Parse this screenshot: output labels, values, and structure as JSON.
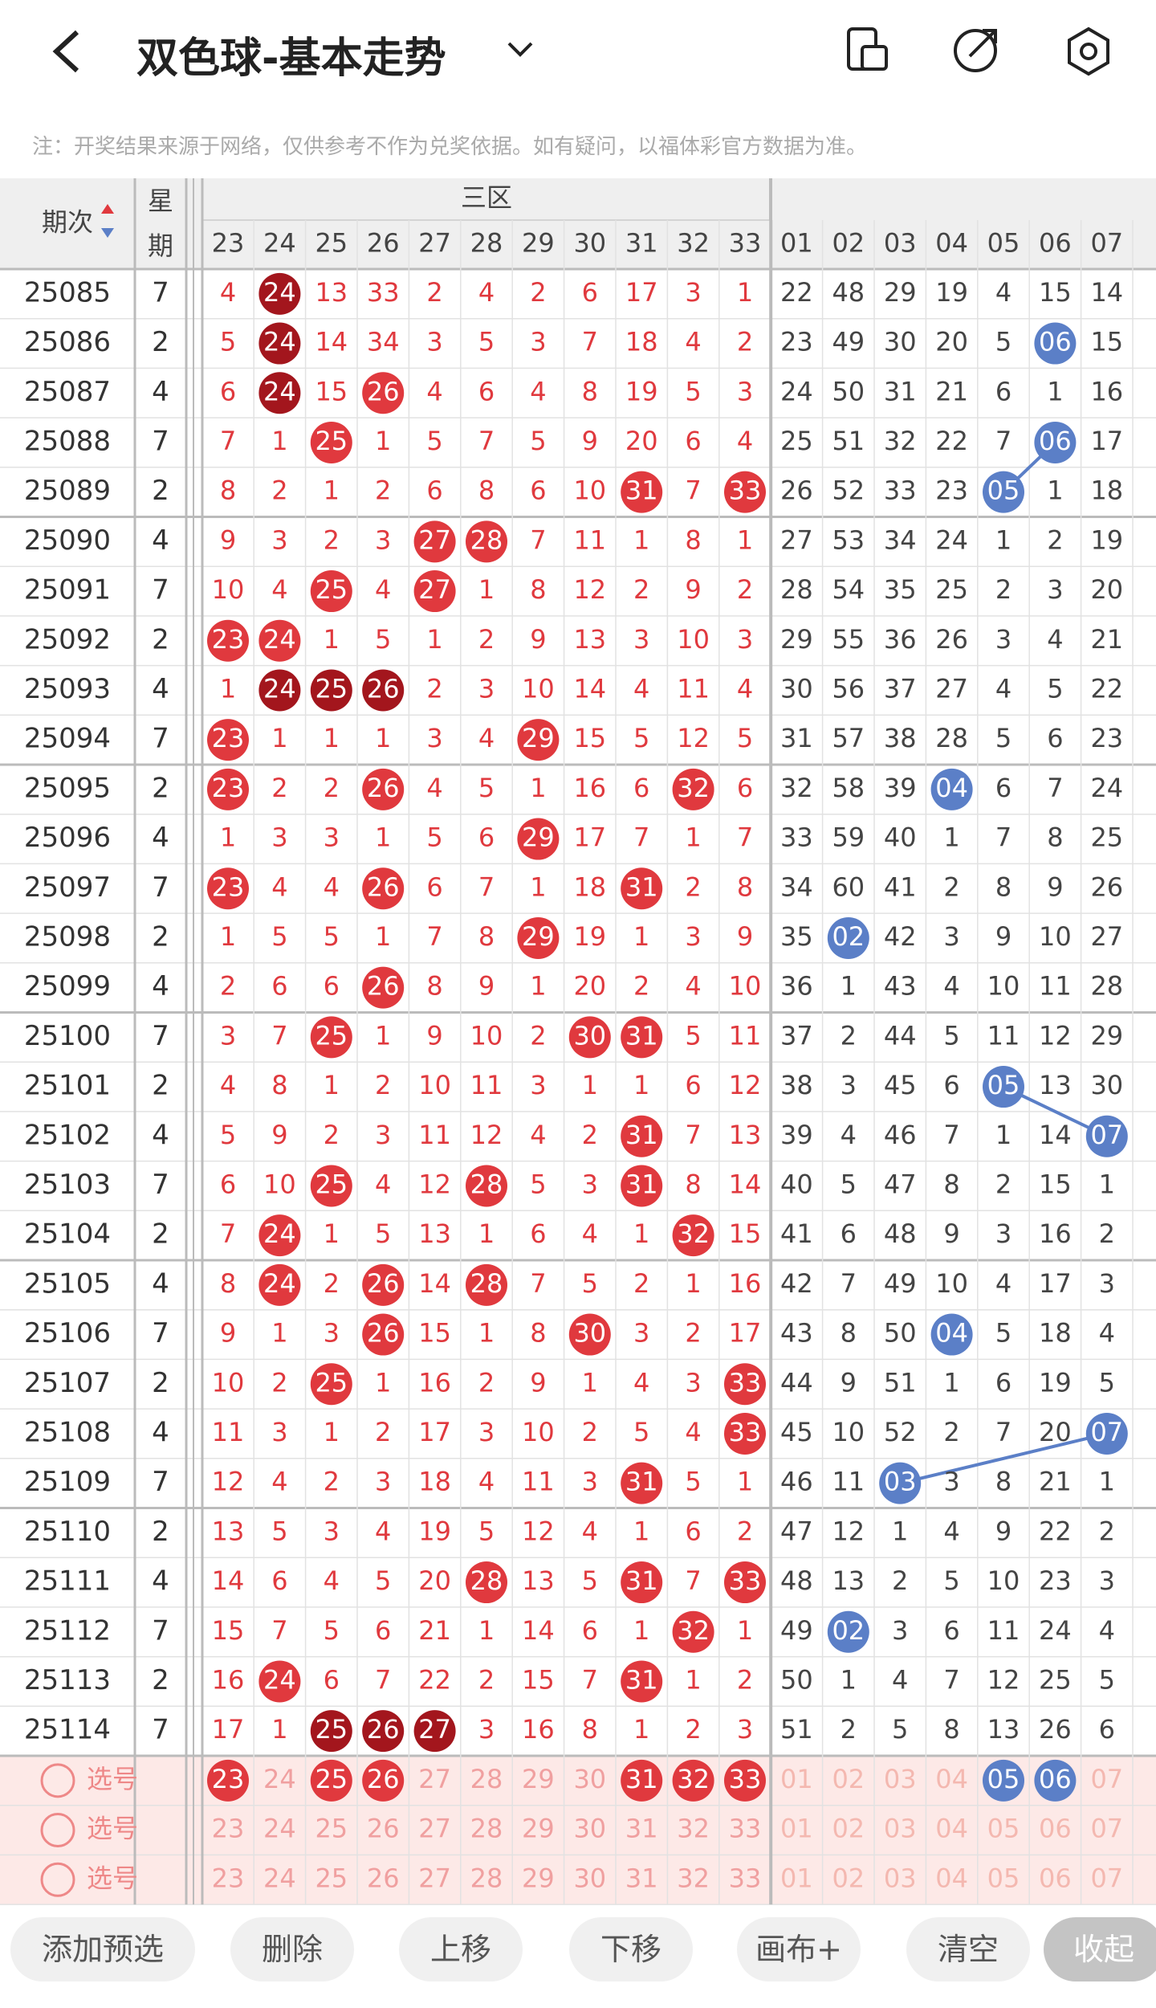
{
  "header": {
    "title": "双色球-基本走势",
    "note": "注：开奖结果来源于网络，仅供参考不作为兑奖依据。如有疑问，以福体彩官方数据为准。"
  },
  "table": {
    "col_period": "期次",
    "col_week_top": "星",
    "col_week_bottom": "期",
    "zone": "三区",
    "columns": [
      "23",
      "24",
      "25",
      "26",
      "27",
      "28",
      "29",
      "30",
      "31",
      "32",
      "33",
      "01",
      "02",
      "03",
      "04",
      "05",
      "06",
      "07"
    ],
    "rows": [
      {
        "period": "25085",
        "week": "7",
        "cells": [
          "4",
          "24",
          "13",
          "33",
          "2",
          "4",
          "2",
          "6",
          "17",
          "3",
          "1",
          "22",
          "48",
          "29",
          "19",
          "4",
          "15",
          "14"
        ]
      },
      {
        "period": "25086",
        "week": "2",
        "cells": [
          "5",
          "24",
          "14",
          "34",
          "3",
          "5",
          "3",
          "7",
          "18",
          "4",
          "2",
          "23",
          "49",
          "30",
          "20",
          "5",
          "06",
          "15"
        ]
      },
      {
        "period": "25087",
        "week": "4",
        "cells": [
          "6",
          "24",
          "15",
          "26",
          "4",
          "6",
          "4",
          "8",
          "19",
          "5",
          "3",
          "24",
          "50",
          "31",
          "21",
          "6",
          "1",
          "16"
        ]
      },
      {
        "period": "25088",
        "week": "7",
        "cells": [
          "7",
          "1",
          "25",
          "1",
          "5",
          "7",
          "5",
          "9",
          "20",
          "6",
          "4",
          "25",
          "51",
          "32",
          "22",
          "7",
          "06",
          "17"
        ]
      },
      {
        "period": "25089",
        "week": "2",
        "cells": [
          "8",
          "2",
          "1",
          "2",
          "6",
          "8",
          "6",
          "10",
          "31",
          "7",
          "33",
          "26",
          "52",
          "33",
          "23",
          "05",
          "1",
          "18"
        ]
      },
      {
        "period": "25090",
        "week": "4",
        "cells": [
          "9",
          "3",
          "2",
          "3",
          "27",
          "28",
          "7",
          "11",
          "1",
          "8",
          "1",
          "27",
          "53",
          "34",
          "24",
          "1",
          "2",
          "19"
        ]
      },
      {
        "period": "25091",
        "week": "7",
        "cells": [
          "10",
          "4",
          "25",
          "4",
          "27",
          "1",
          "8",
          "12",
          "2",
          "9",
          "2",
          "28",
          "54",
          "35",
          "25",
          "2",
          "3",
          "20"
        ]
      },
      {
        "period": "25092",
        "week": "2",
        "cells": [
          "23",
          "24",
          "1",
          "5",
          "1",
          "2",
          "9",
          "13",
          "3",
          "10",
          "3",
          "29",
          "55",
          "36",
          "26",
          "3",
          "4",
          "21"
        ]
      },
      {
        "period": "25093",
        "week": "4",
        "cells": [
          "1",
          "24",
          "25",
          "26",
          "2",
          "3",
          "10",
          "14",
          "4",
          "11",
          "4",
          "30",
          "56",
          "37",
          "27",
          "4",
          "5",
          "22"
        ]
      },
      {
        "period": "25094",
        "week": "7",
        "cells": [
          "23",
          "1",
          "1",
          "1",
          "3",
          "4",
          "29",
          "15",
          "5",
          "12",
          "5",
          "31",
          "57",
          "38",
          "28",
          "5",
          "6",
          "23"
        ]
      },
      {
        "period": "25095",
        "week": "2",
        "cells": [
          "23",
          "2",
          "2",
          "26",
          "4",
          "5",
          "1",
          "16",
          "6",
          "32",
          "6",
          "32",
          "58",
          "39",
          "04",
          "6",
          "7",
          "24"
        ]
      },
      {
        "period": "25096",
        "week": "4",
        "cells": [
          "1",
          "3",
          "3",
          "1",
          "5",
          "6",
          "29",
          "17",
          "7",
          "1",
          "7",
          "33",
          "59",
          "40",
          "1",
          "7",
          "8",
          "25"
        ]
      },
      {
        "period": "25097",
        "week": "7",
        "cells": [
          "23",
          "4",
          "4",
          "26",
          "6",
          "7",
          "1",
          "18",
          "31",
          "2",
          "8",
          "34",
          "60",
          "41",
          "2",
          "8",
          "9",
          "26"
        ]
      },
      {
        "period": "25098",
        "week": "2",
        "cells": [
          "1",
          "5",
          "5",
          "1",
          "7",
          "8",
          "29",
          "19",
          "1",
          "3",
          "9",
          "35",
          "02",
          "42",
          "3",
          "9",
          "10",
          "27"
        ]
      },
      {
        "period": "25099",
        "week": "4",
        "cells": [
          "2",
          "6",
          "6",
          "26",
          "8",
          "9",
          "1",
          "20",
          "2",
          "4",
          "10",
          "36",
          "1",
          "43",
          "4",
          "10",
          "11",
          "28"
        ]
      },
      {
        "period": "25100",
        "week": "7",
        "cells": [
          "3",
          "7",
          "25",
          "1",
          "9",
          "10",
          "2",
          "30",
          "31",
          "5",
          "11",
          "37",
          "2",
          "44",
          "5",
          "11",
          "12",
          "29"
        ]
      },
      {
        "period": "25101",
        "week": "2",
        "cells": [
          "4",
          "8",
          "1",
          "2",
          "10",
          "11",
          "3",
          "1",
          "1",
          "6",
          "12",
          "38",
          "3",
          "45",
          "6",
          "05",
          "13",
          "30"
        ]
      },
      {
        "period": "25102",
        "week": "4",
        "cells": [
          "5",
          "9",
          "2",
          "3",
          "11",
          "12",
          "4",
          "2",
          "31",
          "7",
          "13",
          "39",
          "4",
          "46",
          "7",
          "1",
          "14",
          "07"
        ]
      },
      {
        "period": "25103",
        "week": "7",
        "cells": [
          "6",
          "10",
          "25",
          "4",
          "12",
          "28",
          "5",
          "3",
          "31",
          "8",
          "14",
          "40",
          "5",
          "47",
          "8",
          "2",
          "15",
          "1"
        ]
      },
      {
        "period": "25104",
        "week": "2",
        "cells": [
          "7",
          "24",
          "1",
          "5",
          "13",
          "1",
          "6",
          "4",
          "1",
          "32",
          "15",
          "41",
          "6",
          "48",
          "9",
          "3",
          "16",
          "2"
        ]
      },
      {
        "period": "25105",
        "week": "4",
        "cells": [
          "8",
          "24",
          "2",
          "26",
          "14",
          "28",
          "7",
          "5",
          "2",
          "1",
          "16",
          "42",
          "7",
          "49",
          "10",
          "4",
          "17",
          "3"
        ]
      },
      {
        "period": "25106",
        "week": "7",
        "cells": [
          "9",
          "1",
          "3",
          "26",
          "15",
          "1",
          "8",
          "30",
          "3",
          "2",
          "17",
          "43",
          "8",
          "50",
          "04",
          "5",
          "18",
          "4"
        ]
      },
      {
        "period": "25107",
        "week": "2",
        "cells": [
          "10",
          "2",
          "25",
          "1",
          "16",
          "2",
          "9",
          "1",
          "4",
          "3",
          "33",
          "44",
          "9",
          "51",
          "1",
          "6",
          "19",
          "5"
        ]
      },
      {
        "period": "25108",
        "week": "4",
        "cells": [
          "11",
          "3",
          "1",
          "2",
          "17",
          "3",
          "10",
          "2",
          "5",
          "4",
          "33",
          "45",
          "10",
          "52",
          "2",
          "7",
          "20",
          "07"
        ]
      },
      {
        "period": "25109",
        "week": "7",
        "cells": [
          "12",
          "4",
          "2",
          "3",
          "18",
          "4",
          "11",
          "3",
          "31",
          "5",
          "1",
          "46",
          "11",
          "03",
          "3",
          "8",
          "21",
          "1"
        ]
      },
      {
        "period": "25110",
        "week": "2",
        "cells": [
          "13",
          "5",
          "3",
          "4",
          "19",
          "5",
          "12",
          "4",
          "1",
          "6",
          "2",
          "47",
          "12",
          "1",
          "4",
          "9",
          "22",
          "2"
        ]
      },
      {
        "period": "25111",
        "week": "4",
        "cells": [
          "14",
          "6",
          "4",
          "5",
          "20",
          "28",
          "13",
          "5",
          "31",
          "7",
          "33",
          "48",
          "13",
          "2",
          "5",
          "10",
          "23",
          "3"
        ]
      },
      {
        "period": "25112",
        "week": "7",
        "cells": [
          "15",
          "7",
          "5",
          "6",
          "21",
          "1",
          "14",
          "6",
          "1",
          "32",
          "1",
          "49",
          "02",
          "3",
          "6",
          "11",
          "24",
          "4"
        ]
      },
      {
        "period": "25113",
        "week": "2",
        "cells": [
          "16",
          "24",
          "6",
          "7",
          "22",
          "2",
          "15",
          "7",
          "31",
          "1",
          "2",
          "50",
          "1",
          "4",
          "7",
          "12",
          "25",
          "5"
        ]
      },
      {
        "period": "25114",
        "week": "7",
        "cells": [
          "17",
          "1",
          "25",
          "26",
          "27",
          "3",
          "16",
          "8",
          "1",
          "2",
          "3",
          "51",
          "2",
          "5",
          "8",
          "13",
          "26",
          "6"
        ]
      }
    ],
    "red_count": 11
  },
  "selector": {
    "labels": [
      "选号",
      "选号",
      "选号"
    ],
    "selected": [
      "23",
      "25",
      "26",
      "31",
      "32",
      "33",
      "05",
      "06"
    ]
  },
  "toolbar": [
    "添加预选",
    "删除",
    "上移",
    "下移",
    "画布+",
    "清空",
    "收起"
  ]
}
